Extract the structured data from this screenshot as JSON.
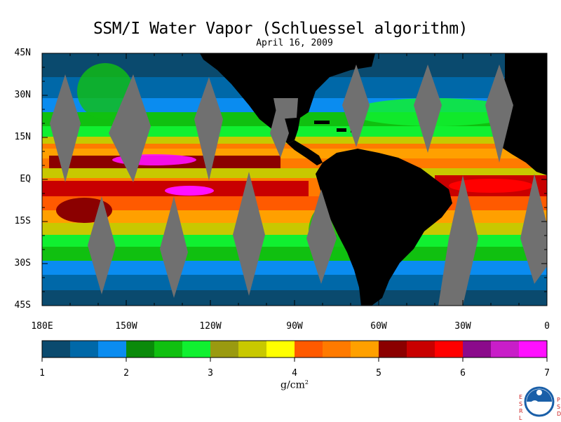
{
  "title": "SSM/I Water Vapor (Schluessel algorithm)",
  "subtitle": "April 16, 2009",
  "lat_labels": [
    "45N",
    "30N",
    "15N",
    "EQ",
    "15S",
    "30S",
    "45S"
  ],
  "lon_labels": [
    "180E",
    "150W",
    "120W",
    "90W",
    "60W",
    "30W",
    "0"
  ],
  "colorbar": {
    "ticks": [
      "1",
      "2",
      "3",
      "4",
      "5",
      "6",
      "7"
    ],
    "units": "g/cm",
    "units_sup": "2",
    "colors": [
      "#0a4a6e",
      "#0068a8",
      "#0a8cf0",
      "#0a8a0a",
      "#10c010",
      "#10f030",
      "#9a9a10",
      "#c8c800",
      "#ffff00",
      "#ff5a00",
      "#ff7a00",
      "#ffa000",
      "#8b0000",
      "#c80000",
      "#ff0000",
      "#8b0a8b",
      "#c81ec8",
      "#ff10ff"
    ]
  },
  "logo": {
    "name": "NOAA",
    "left_letters": [
      "E",
      "S",
      "R",
      "L"
    ],
    "right_letters": [
      "P",
      "S",
      "D"
    ]
  },
  "chart_data": {
    "type": "heatmap",
    "title": "SSM/I Water Vapor (Schluessel algorithm)",
    "subtitle": "April 16, 2009",
    "xlabel": "",
    "ylabel": "",
    "x_range": [
      -180,
      0
    ],
    "y_range": [
      -45,
      45
    ],
    "x_ticks": [
      "180E",
      "150W",
      "120W",
      "90W",
      "60W",
      "30W",
      "0"
    ],
    "y_ticks": [
      "45N",
      "30N",
      "15N",
      "EQ",
      "15S",
      "30S",
      "45S"
    ],
    "value_range": [
      1,
      7
    ],
    "units": "g/cm2",
    "missing_swath_color": "#707070",
    "land_color": "#000000"
  }
}
